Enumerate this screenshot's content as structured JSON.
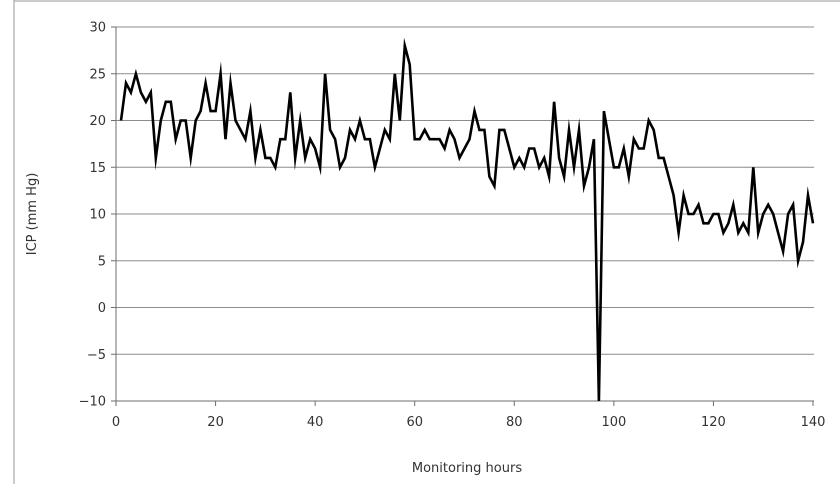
{
  "chart_data": {
    "type": "line",
    "title": "",
    "xlabel": "Monitoring hours",
    "ylabel": "ICP (mm Hg)",
    "xlim": [
      0,
      140
    ],
    "ylim": [
      -10,
      30
    ],
    "x_ticks": [
      0,
      20,
      40,
      60,
      80,
      100,
      120,
      140
    ],
    "y_ticks": [
      30,
      25,
      20,
      15,
      10,
      5,
      0,
      -5,
      -10
    ],
    "x_tick_labels": [
      "0",
      "20",
      "40",
      "60",
      "80",
      "100",
      "120",
      "140"
    ],
    "y_tick_labels": [
      "30",
      "25",
      "20",
      "15",
      "10",
      "5",
      "0",
      "−5",
      "−10"
    ],
    "grid": "horizontal",
    "legend": "none",
    "series": [
      {
        "color": "#000000",
        "x": [
          1,
          2,
          3,
          4,
          5,
          6,
          7,
          8,
          9,
          10,
          11,
          12,
          13,
          14,
          15,
          16,
          17,
          18,
          19,
          20,
          21,
          22,
          23,
          24,
          25,
          26,
          27,
          28,
          29,
          30,
          31,
          32,
          33,
          34,
          35,
          36,
          37,
          38,
          39,
          40,
          41,
          42,
          43,
          44,
          45,
          46,
          47,
          48,
          49,
          50,
          51,
          52,
          53,
          54,
          55,
          56,
          57,
          58,
          59,
          60,
          61,
          62,
          63,
          64,
          65,
          66,
          67,
          68,
          69,
          70,
          71,
          72,
          73,
          74,
          75,
          76,
          77,
          78,
          79,
          80,
          81,
          82,
          83,
          84,
          85,
          86,
          87,
          88,
          89,
          90,
          91,
          92,
          93,
          94,
          95,
          96,
          97,
          98,
          99,
          100,
          101,
          102,
          103,
          104,
          105,
          106,
          107,
          108,
          109,
          110,
          111,
          112,
          113,
          114,
          115,
          116,
          117,
          118,
          119,
          120,
          121,
          122,
          123,
          124,
          125,
          126,
          127,
          128,
          129,
          130,
          131,
          132,
          133,
          134,
          135,
          136,
          137,
          138,
          139,
          140
        ],
        "y": [
          20,
          24,
          23,
          25,
          23,
          22,
          23,
          16,
          20,
          22,
          22,
          18,
          20,
          20,
          16,
          20,
          21,
          24,
          21,
          21,
          25,
          18,
          24,
          20,
          19,
          18,
          21,
          16,
          19,
          16,
          16,
          15,
          18,
          18,
          23,
          16,
          20,
          16,
          18,
          17,
          15,
          25,
          19,
          18,
          15,
          16,
          19,
          18,
          20,
          18,
          18,
          15,
          17,
          19,
          18,
          25,
          20,
          28,
          26,
          18,
          18,
          19,
          18,
          18,
          18,
          17,
          19,
          18,
          16,
          17,
          18,
          21,
          19,
          19,
          14,
          13,
          19,
          19,
          17,
          15,
          16,
          15,
          17,
          17,
          15,
          16,
          14,
          22,
          16,
          14,
          19,
          15,
          19,
          13,
          15,
          18,
          -10,
          21,
          18,
          15,
          15,
          17,
          14,
          18,
          17,
          17,
          20,
          19,
          16,
          16,
          14,
          12,
          8,
          12,
          10,
          10,
          11,
          9,
          9,
          10,
          10,
          8,
          9,
          11,
          8,
          9,
          8,
          15,
          8,
          10,
          11,
          10,
          8,
          6,
          10,
          11,
          5,
          7,
          12,
          9
        ]
      }
    ]
  }
}
